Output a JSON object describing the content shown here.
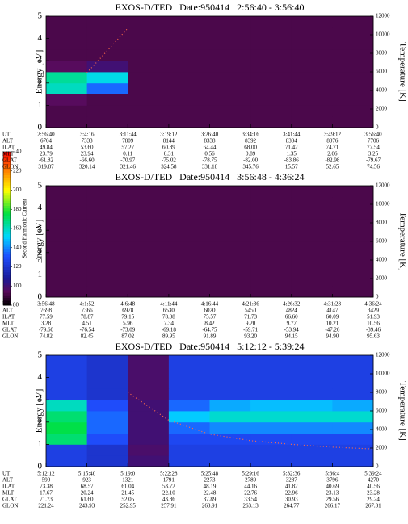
{
  "colorbar": {
    "label": "Second Harmonic Current",
    "lim": [
      80,
      240
    ],
    "ticks": [
      80,
      100,
      120,
      140,
      160,
      180,
      200,
      220,
      240
    ]
  },
  "chart_data": [
    {
      "type": "heatmap",
      "title": "EXOS-D/TED   Date:950414   2:56:40 - 3:56:40",
      "ylabel": "Energy [eV]",
      "y2label": "Temperature [K]",
      "ylim": [
        0,
        5
      ],
      "yticks": [
        0,
        1,
        2,
        3,
        4,
        5
      ],
      "y2lim": [
        0,
        12000
      ],
      "y2ticks": [
        0,
        2000,
        4000,
        6000,
        8000,
        10000,
        12000
      ],
      "z": [
        [
          92,
          92,
          92,
          92,
          92,
          92,
          92,
          92
        ],
        [
          92,
          92,
          92,
          92,
          92,
          92,
          92,
          92
        ],
        [
          95,
          92,
          92,
          92,
          92,
          92,
          92,
          92
        ],
        [
          160,
          135,
          92,
          92,
          92,
          92,
          92,
          92
        ],
        [
          165,
          155,
          92,
          92,
          92,
          92,
          92,
          92
        ],
        [
          95,
          100,
          92,
          92,
          92,
          92,
          92,
          92
        ],
        [
          92,
          92,
          92,
          92,
          92,
          92,
          92,
          92
        ],
        [
          92,
          92,
          92,
          92,
          92,
          92,
          92,
          92
        ],
        [
          92,
          92,
          92,
          92,
          92,
          92,
          92,
          92
        ],
        [
          92,
          92,
          92,
          92,
          92,
          92,
          92,
          92
        ]
      ],
      "temperature": [
        null,
        5900,
        10700,
        null,
        null,
        null,
        null,
        null,
        null
      ],
      "orbit": [
        {
          "label": "UT",
          "values": [
            "2:56:40",
            "3:4:16",
            "3:11:44",
            "3:19:12",
            "3:26:40",
            "3:34:16",
            "3:41:44",
            "3:49:12",
            "3:56:40"
          ]
        },
        {
          "label": "ALT",
          "values": [
            "6704",
            "7333",
            "7809",
            "8144",
            "8338",
            "8392",
            "8304",
            "8076",
            "7706"
          ]
        },
        {
          "label": "ILAT",
          "values": [
            "49.84",
            "53.60",
            "57.27",
            "60.89",
            "64.44",
            "68.00",
            "71.42",
            "74.71",
            "77.54"
          ]
        },
        {
          "label": "MLT",
          "values": [
            "23.79",
            "23.94",
            "0.11",
            "0.31",
            "0.56",
            "0.89",
            "1.35",
            "2.06",
            "3.25"
          ]
        },
        {
          "label": "GLAT",
          "values": [
            "-61.82",
            "-66.60",
            "-70.97",
            "-75.02",
            "-78.75",
            "-82.00",
            "-83.86",
            "-82.98",
            "-79.67"
          ]
        },
        {
          "label": "GLON",
          "values": [
            "319.87",
            "320.14",
            "321.46",
            "324.58",
            "331.18",
            "345.76",
            "15.57",
            "52.65",
            "74.56"
          ]
        }
      ]
    },
    {
      "type": "heatmap",
      "title": "EXOS-D/TED   Date:950414   3:56:48 - 4:36:24",
      "ylabel": "Energy [eV]",
      "y2label": "Temperature [K]",
      "ylim": [
        0,
        5
      ],
      "yticks": [
        0,
        1,
        2,
        3,
        4,
        5
      ],
      "y2lim": [
        0,
        12000
      ],
      "y2ticks": [
        0,
        2000,
        4000,
        6000,
        8000,
        10000,
        12000
      ],
      "z": [
        [
          92,
          92,
          92,
          92,
          92,
          92,
          92,
          92
        ],
        [
          92,
          92,
          92,
          92,
          92,
          92,
          92,
          92
        ],
        [
          92,
          92,
          92,
          92,
          92,
          92,
          92,
          92
        ],
        [
          92,
          92,
          92,
          92,
          92,
          92,
          92,
          92
        ],
        [
          92,
          92,
          92,
          92,
          92,
          92,
          92,
          92
        ],
        [
          92,
          92,
          92,
          92,
          92,
          92,
          92,
          92
        ],
        [
          92,
          92,
          92,
          92,
          92,
          92,
          92,
          92
        ],
        [
          92,
          92,
          92,
          92,
          92,
          92,
          92,
          92
        ],
        [
          92,
          92,
          92,
          92,
          92,
          92,
          92,
          92
        ],
        [
          92,
          92,
          92,
          92,
          92,
          92,
          92,
          92
        ]
      ],
      "orbit": [
        {
          "label": "UT",
          "values": [
            "3:56:48",
            "4:1:52",
            "4:6:48",
            "4:11:44",
            "4:16:44",
            "4:21:36",
            "4:26:32",
            "4:31:28",
            "4:36:24"
          ]
        },
        {
          "label": "ALT",
          "values": [
            "7698",
            "7366",
            "6978",
            "6530",
            "6020",
            "5450",
            "4824",
            "4147",
            "3429"
          ]
        },
        {
          "label": "ILAT",
          "values": [
            "77.59",
            "78.87",
            "79.15",
            "78.08",
            "75.57",
            "71.73",
            "66.60",
            "60.09",
            "51.93"
          ]
        },
        {
          "label": "MLT",
          "values": [
            "3.28",
            "4.51",
            "5.96",
            "7.34",
            "8.42",
            "9.20",
            "9.77",
            "10.21",
            "10.56"
          ]
        },
        {
          "label": "GLAT",
          "values": [
            "-79.60",
            "-76.54",
            "-73.09",
            "-69.18",
            "-64.75",
            "-59.71",
            "-53.94",
            "-47.26",
            "-39.46"
          ]
        },
        {
          "label": "GLON",
          "values": [
            "74.82",
            "82.45",
            "87.02",
            "89.95",
            "91.89",
            "93.20",
            "94.15",
            "94.90",
            "95.63"
          ]
        }
      ]
    },
    {
      "type": "heatmap",
      "title": "EXOS-D/TED   Date:950414   5:12:12 - 5:39:24",
      "ylabel": "Energy [eV]",
      "y2label": "Temperature [K]",
      "ylim": [
        0,
        5
      ],
      "yticks": [
        0,
        1,
        2,
        3,
        4,
        5
      ],
      "y2lim": [
        0,
        12000
      ],
      "y2ticks": [
        0,
        2000,
        4000,
        6000,
        8000,
        10000,
        12000
      ],
      "z": [
        [
          125,
          120,
          100,
          125,
          125,
          125,
          125,
          125
        ],
        [
          125,
          120,
          98,
          125,
          125,
          125,
          125,
          125
        ],
        [
          170,
          130,
          100,
          128,
          128,
          128,
          128,
          128
        ],
        [
          175,
          135,
          100,
          135,
          140,
          140,
          140,
          140
        ],
        [
          170,
          135,
          100,
          150,
          158,
          158,
          158,
          158
        ],
        [
          160,
          130,
          100,
          135,
          145,
          148,
          148,
          145
        ],
        [
          125,
          120,
          98,
          125,
          125,
          125,
          125,
          125
        ],
        [
          125,
          120,
          98,
          125,
          125,
          125,
          125,
          125
        ],
        [
          125,
          120,
          98,
          125,
          125,
          125,
          125,
          125
        ],
        [
          125,
          120,
          98,
          125,
          125,
          125,
          125,
          125
        ]
      ],
      "temperature": [
        null,
        null,
        8000,
        5000,
        3500,
        2800,
        2400,
        2100,
        1900
      ],
      "orbit": [
        {
          "label": "UT",
          "values": [
            "5:12:12",
            "5:15:40",
            "5:19:0",
            "5:22:28",
            "5:25:48",
            "5:29:16",
            "5:32:36",
            "5:36:4",
            "5:39:24"
          ]
        },
        {
          "label": "ALT",
          "values": [
            "590",
            "923",
            "1321",
            "1791",
            "2273",
            "2789",
            "3287",
            "3796",
            "4270"
          ]
        },
        {
          "label": "ILAT",
          "values": [
            "73.38",
            "68.57",
            "61.04",
            "53.72",
            "48.19",
            "44.16",
            "41.82",
            "40.69",
            "40.56"
          ]
        },
        {
          "label": "MLT",
          "values": [
            "17.67",
            "20.24",
            "21.45",
            "22.10",
            "22.48",
            "22.76",
            "22.96",
            "23.13",
            "23.28"
          ]
        },
        {
          "label": "GLAT",
          "values": [
            "71.73",
            "61.60",
            "52.05",
            "43.86",
            "37.89",
            "33.54",
            "30.93",
            "29.56",
            "29.24"
          ]
        },
        {
          "label": "GLON",
          "values": [
            "221.24",
            "243.93",
            "252.95",
            "257.91",
            "260.91",
            "263.13",
            "264.77",
            "266.17",
            "267.31"
          ]
        }
      ]
    }
  ]
}
